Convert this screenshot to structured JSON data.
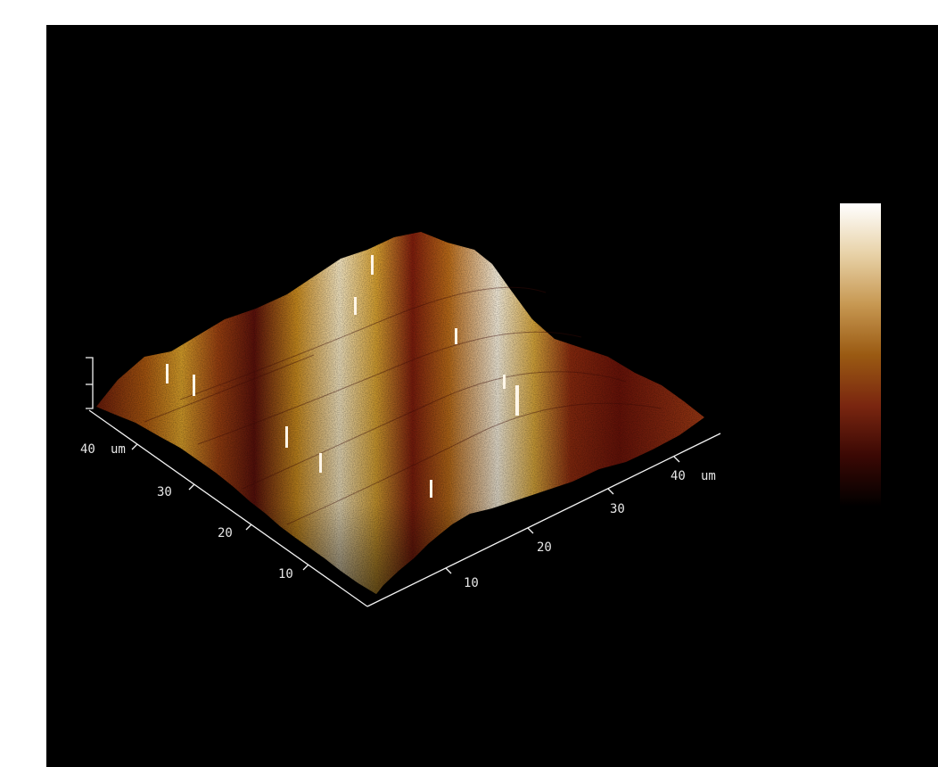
{
  "image": {
    "type": "AFM 3D height map",
    "background_color": "#000000",
    "colormap": [
      "#ffffff",
      "#d8b078",
      "#b07a1e",
      "#7e2a0e",
      "#4a0e06",
      "#000000"
    ]
  },
  "axes": {
    "left_axis": {
      "tick_labels": [
        "10",
        "20",
        "30",
        "40"
      ],
      "unit_label": "um"
    },
    "right_axis": {
      "tick_labels": [
        "10",
        "20",
        "30",
        "40"
      ],
      "unit_label": "um"
    }
  },
  "colorbar": {
    "shown": true,
    "stops": [
      "#ffffff",
      "#e8d2a8",
      "#c79852",
      "#9a5a12",
      "#7a2610",
      "#3a0804",
      "#000000"
    ]
  }
}
